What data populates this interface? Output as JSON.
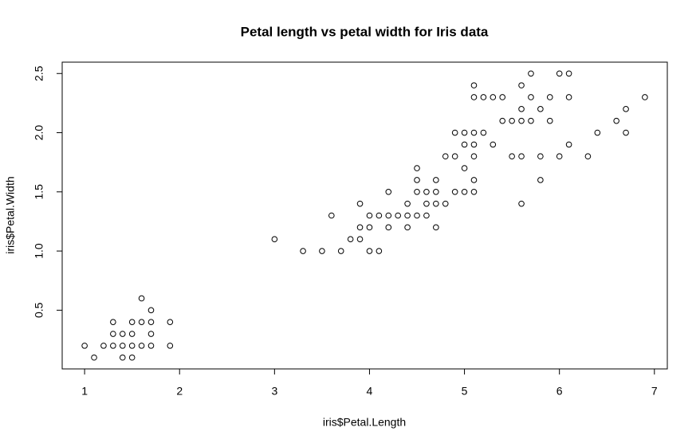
{
  "chart_data": {
    "type": "scatter",
    "title": "Petal length vs petal width for Iris data",
    "x_label": "iris$Petal.Length",
    "y_label": "iris$Petal.Width",
    "color": "#000000",
    "x": [
      1.0,
      1.1,
      1.2,
      1.3,
      1.3,
      1.3,
      1.4,
      1.4,
      1.4,
      1.5,
      1.5,
      1.5,
      1.5,
      1.6,
      1.6,
      1.6,
      1.7,
      1.7,
      1.7,
      1.7,
      1.9,
      1.9,
      3.0,
      3.3,
      3.5,
      3.6,
      3.7,
      3.8,
      3.9,
      3.9,
      3.9,
      4.0,
      4.0,
      4.0,
      4.1,
      4.1,
      4.2,
      4.2,
      4.2,
      4.3,
      4.4,
      4.4,
      4.4,
      4.5,
      4.5,
      4.5,
      4.5,
      4.6,
      4.6,
      4.6,
      4.7,
      4.7,
      4.7,
      4.7,
      4.8,
      4.8,
      4.9,
      4.9,
      4.9,
      5.0,
      5.0,
      5.0,
      5.0,
      5.1,
      5.1,
      5.1,
      5.1,
      5.1,
      5.1,
      5.1,
      5.2,
      5.2,
      5.3,
      5.3,
      5.4,
      5.4,
      5.5,
      5.5,
      5.6,
      5.6,
      5.6,
      5.6,
      5.6,
      5.7,
      5.7,
      5.7,
      5.8,
      5.8,
      5.8,
      5.9,
      5.9,
      6.0,
      6.0,
      6.1,
      6.1,
      6.1,
      6.3,
      6.4,
      6.6,
      6.7,
      6.7,
      6.9
    ],
    "values": [
      0.2,
      0.1,
      0.2,
      0.2,
      0.3,
      0.4,
      0.1,
      0.2,
      0.3,
      0.1,
      0.2,
      0.3,
      0.4,
      0.2,
      0.4,
      0.6,
      0.2,
      0.3,
      0.4,
      0.5,
      0.2,
      0.4,
      1.1,
      1.0,
      1.0,
      1.3,
      1.0,
      1.1,
      1.1,
      1.2,
      1.4,
      1.0,
      1.2,
      1.3,
      1.0,
      1.3,
      1.2,
      1.3,
      1.5,
      1.3,
      1.2,
      1.3,
      1.4,
      1.3,
      1.5,
      1.6,
      1.7,
      1.3,
      1.4,
      1.5,
      1.2,
      1.4,
      1.5,
      1.6,
      1.4,
      1.8,
      1.5,
      1.8,
      2.0,
      1.5,
      1.7,
      1.9,
      2.0,
      1.5,
      1.6,
      1.8,
      1.9,
      2.0,
      2.3,
      2.4,
      2.0,
      2.3,
      1.9,
      2.3,
      2.1,
      2.3,
      1.8,
      2.1,
      1.4,
      1.8,
      2.1,
      2.2,
      2.4,
      2.1,
      2.3,
      2.5,
      1.6,
      1.8,
      2.2,
      2.1,
      2.3,
      1.8,
      2.5,
      1.9,
      2.3,
      2.5,
      1.8,
      2.0,
      2.1,
      2.0,
      2.2,
      2.3
    ],
    "xlim": [
      0.764,
      7.136
    ],
    "ylim": [
      0.004,
      2.596
    ],
    "xticks": [
      1,
      2,
      3,
      4,
      5,
      6,
      7
    ],
    "yticks": [
      0.5,
      {
        "value": 1,
        "label": "1.0"
      },
      1.5,
      {
        "value": 2,
        "label": "2.0"
      },
      2.5
    ]
  }
}
